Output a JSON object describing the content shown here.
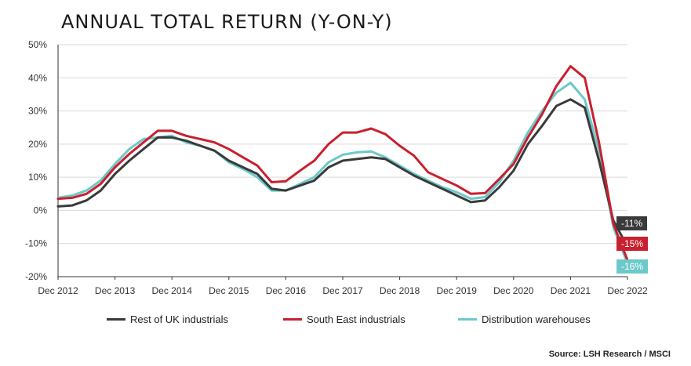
{
  "title": "ANNUAL TOTAL RETURN (Y-ON-Y)",
  "source": "Source: LSH Research / MSCI",
  "colors": {
    "rest_uk": "#3a3a3a",
    "south_east": "#c8202f",
    "distribution": "#6dc9c9",
    "grid": "#d9d9d9",
    "axis": "#333333"
  },
  "chart_data": {
    "type": "line",
    "x": [
      "2012-12",
      "2013-03",
      "2013-06",
      "2013-09",
      "2013-12",
      "2014-03",
      "2014-06",
      "2014-09",
      "2014-12",
      "2015-03",
      "2015-06",
      "2015-09",
      "2015-12",
      "2016-03",
      "2016-06",
      "2016-09",
      "2016-12",
      "2017-03",
      "2017-06",
      "2017-09",
      "2017-12",
      "2018-03",
      "2018-06",
      "2018-09",
      "2018-12",
      "2019-03",
      "2019-06",
      "2019-09",
      "2019-12",
      "2020-03",
      "2020-06",
      "2020-09",
      "2020-12",
      "2021-03",
      "2021-06",
      "2021-09",
      "2021-12",
      "2022-03",
      "2022-06",
      "2022-09",
      "2022-12"
    ],
    "xticks": [
      "Dec 2012",
      "Dec 2013",
      "Dec 2014",
      "Dec 2015",
      "Dec 2016",
      "Dec 2017",
      "Dec 2018",
      "Dec 2019",
      "Dec 2020",
      "Dec 2021",
      "Dec 2022"
    ],
    "yticks": [
      "50%",
      "40%",
      "30%",
      "20%",
      "10%",
      "0%",
      "-10%",
      "-20%"
    ],
    "ylim": [
      -20,
      50
    ],
    "grid": "horizontal",
    "legend_position": "bottom",
    "series": [
      {
        "name": "Rest of UK industrials",
        "color_key": "rest_uk",
        "end_label": "-11%",
        "values": [
          1.2,
          1.5,
          3.0,
          6.0,
          11.0,
          15.0,
          18.5,
          22.0,
          22.0,
          21.0,
          19.5,
          18.0,
          15.0,
          13.0,
          11.0,
          6.5,
          6.0,
          7.5,
          9.0,
          13.0,
          15.0,
          15.5,
          16.0,
          15.5,
          13.0,
          10.5,
          8.5,
          6.5,
          4.5,
          2.5,
          3.0,
          7.0,
          12.0,
          20.0,
          25.5,
          31.5,
          33.5,
          31.0,
          15.0,
          -3.0,
          -11.0
        ]
      },
      {
        "name": "South East industrials",
        "color_key": "south_east",
        "end_label": "-15%",
        "values": [
          3.5,
          3.8,
          5.0,
          8.0,
          13.0,
          17.0,
          20.5,
          24.0,
          24.0,
          22.5,
          21.5,
          20.5,
          18.5,
          16.0,
          13.5,
          8.5,
          8.8,
          12.0,
          15.0,
          20.0,
          23.5,
          23.5,
          24.7,
          23.0,
          19.5,
          16.5,
          11.5,
          9.5,
          7.5,
          5.0,
          5.2,
          9.5,
          14.0,
          22.0,
          29.0,
          37.5,
          43.5,
          40.0,
          20.5,
          -4.0,
          -15.0
        ]
      },
      {
        "name": "Distribution warehouses",
        "color_key": "distribution",
        "end_label": "-16%",
        "values": [
          3.8,
          4.5,
          6.0,
          9.0,
          14.0,
          18.5,
          21.5,
          22.0,
          22.5,
          20.5,
          19.5,
          18.0,
          14.5,
          12.5,
          10.0,
          6.0,
          6.0,
          8.0,
          10.0,
          14.5,
          16.8,
          17.5,
          17.8,
          16.0,
          13.5,
          11.0,
          9.0,
          7.0,
          5.5,
          3.5,
          4.0,
          8.5,
          15.0,
          23.5,
          30.0,
          35.5,
          38.5,
          33.5,
          18.0,
          -5.0,
          -16.0
        ]
      }
    ]
  }
}
